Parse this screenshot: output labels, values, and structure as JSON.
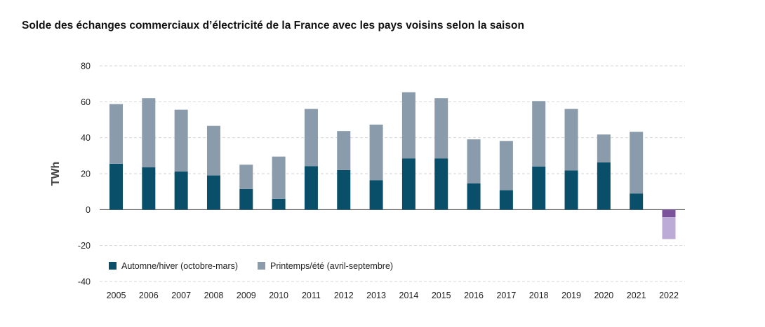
{
  "chart_data": {
    "type": "bar",
    "stacked": true,
    "title": "Solde des échanges commerciaux d’électricité de la France avec les pays voisins selon la saison",
    "ylabel": "TWh",
    "xlabel": "",
    "ylim": [
      -40,
      80
    ],
    "yticks": [
      80,
      60,
      40,
      20,
      0,
      -20,
      -40
    ],
    "grid": true,
    "legend_position": "bottom-left",
    "categories": [
      "2005",
      "2006",
      "2007",
      "2008",
      "2009",
      "2010",
      "2011",
      "2012",
      "2013",
      "2014",
      "2015",
      "2016",
      "2017",
      "2018",
      "2019",
      "2020",
      "2021",
      "2022"
    ],
    "series": [
      {
        "name": "Automne/hiver (octobre-mars)",
        "color": "#0a4f69",
        "values": [
          25.5,
          23.5,
          21.2,
          19,
          11.5,
          6,
          24.2,
          22,
          16.3,
          28.5,
          28.5,
          14.6,
          10.8,
          24,
          21.8,
          26.3,
          9,
          -4.2
        ]
      },
      {
        "name": "Printemps/été (avril-septembre)",
        "color": "#8a9bab",
        "values": [
          33.2,
          38.5,
          34.4,
          27.6,
          13.5,
          23.5,
          31.8,
          21.7,
          31,
          36.8,
          33.5,
          24.5,
          27.4,
          36.4,
          34.2,
          15.5,
          34.3,
          -12.2
        ]
      }
    ],
    "negative_colors": [
      "#7b539b",
      "#bcabd6"
    ]
  }
}
